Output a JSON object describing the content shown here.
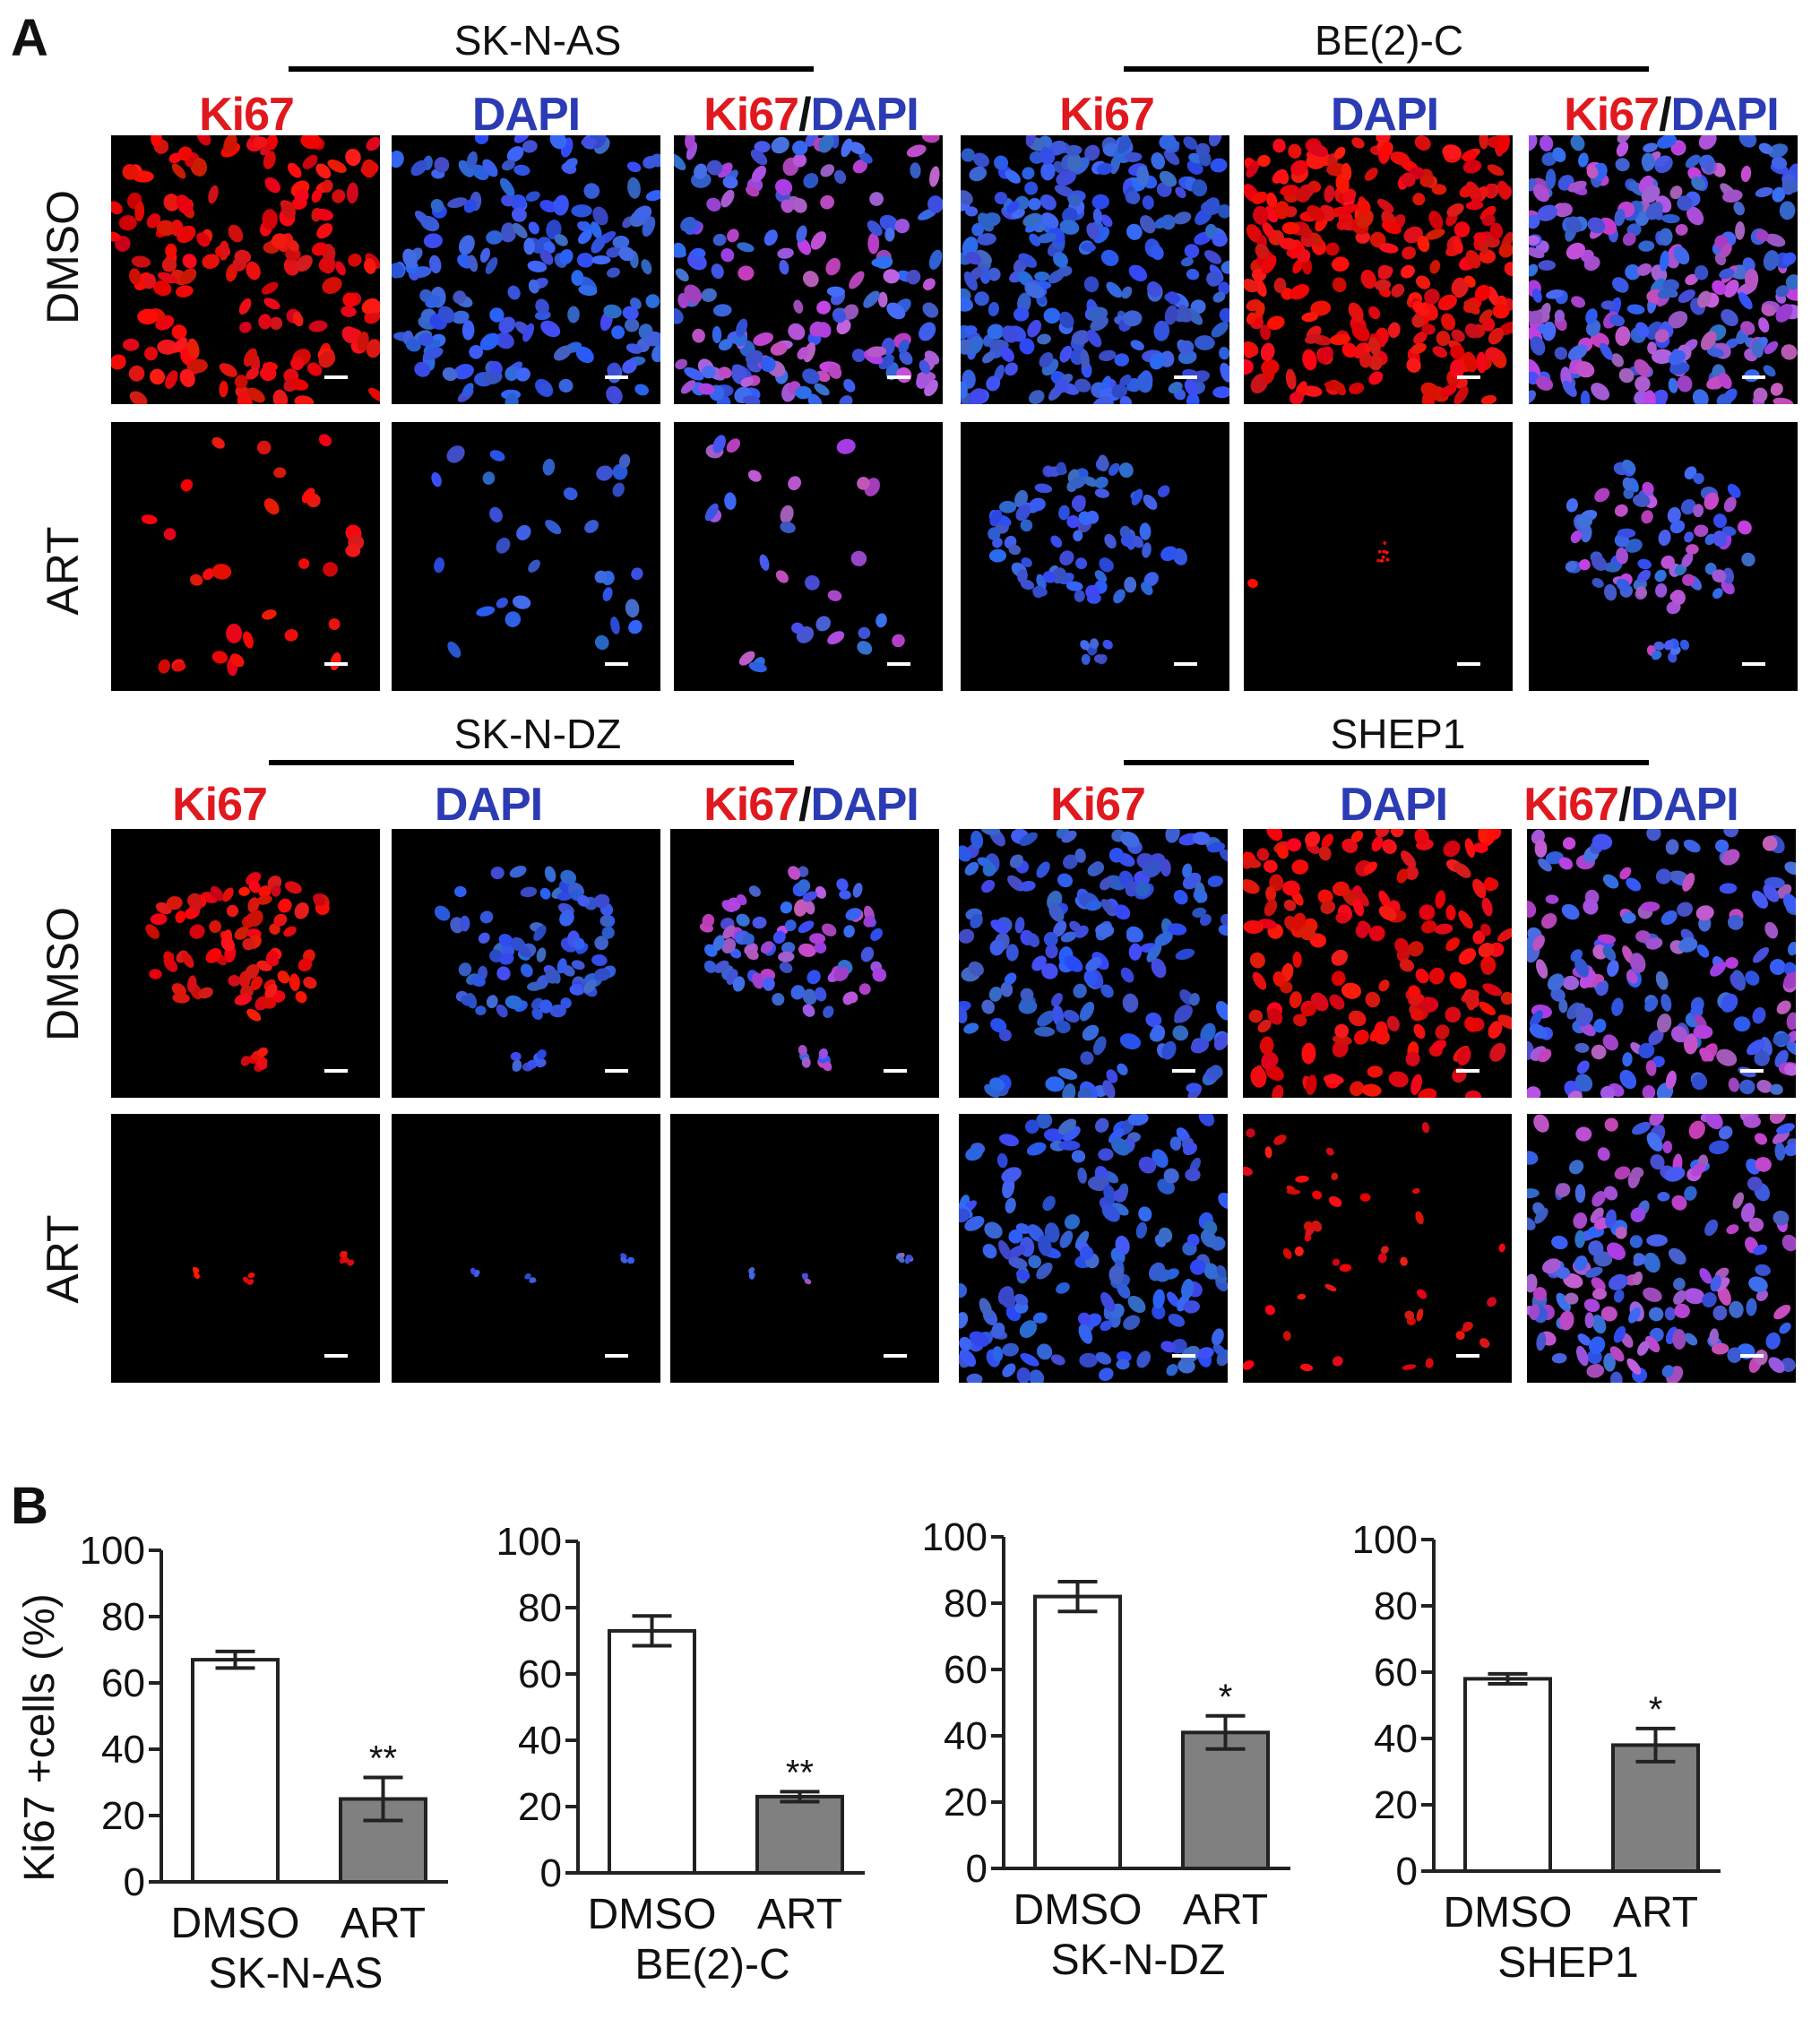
{
  "panel_a": {
    "letter": "A",
    "groups": [
      {
        "cell_line": "SK-N-AS",
        "channels": [
          "Ki67",
          "DAPI",
          "Ki67/DAPI"
        ],
        "rows": [
          "DMSO",
          "ART"
        ]
      },
      {
        "cell_line": "BE(2)-C",
        "channels": [
          "Ki67",
          "DAPI",
          "Ki67/DAPI"
        ],
        "rows": [
          "DMSO",
          "ART"
        ]
      },
      {
        "cell_line": "SK-N-DZ",
        "channels": [
          "Ki67",
          "DAPI",
          "Ki67/DAPI"
        ],
        "rows": [
          "DMSO",
          "ART"
        ]
      },
      {
        "cell_line": "SHEP1",
        "channels": [
          "Ki67",
          "DAPI",
          "Ki67/DAPI"
        ],
        "rows": [
          "DMSO",
          "ART"
        ]
      }
    ],
    "labels": {
      "ki67": "Ki67",
      "dapi": "DAPI",
      "slash": "/",
      "dmso": "DMSO",
      "art": "ART"
    },
    "colors": {
      "ki67": "#e0191f",
      "dapi": "#2b3bb3"
    }
  },
  "panel_b": {
    "letter": "B",
    "ylabel": "Ki67 +cells (%)"
  },
  "chart_data": [
    {
      "type": "bar",
      "categories": [
        "DMSO",
        "ART"
      ],
      "xlabel": "SK-N-AS",
      "ylabel": "Ki67 +cells (%)",
      "ylim": [
        0,
        100
      ],
      "yticks": [
        0,
        20,
        40,
        60,
        80,
        100
      ],
      "values": [
        67,
        25
      ],
      "errors": [
        2.5,
        6.5
      ],
      "significance": [
        "",
        "**"
      ],
      "bar_colors": [
        "#ffffff",
        "#808080"
      ]
    },
    {
      "type": "bar",
      "categories": [
        "DMSO",
        "ART"
      ],
      "xlabel": "BE(2)-C",
      "ylabel": "",
      "ylim": [
        0,
        100
      ],
      "yticks": [
        0,
        20,
        40,
        60,
        80,
        100
      ],
      "values": [
        73,
        23
      ],
      "errors": [
        4.5,
        1.5
      ],
      "significance": [
        "",
        "**"
      ],
      "bar_colors": [
        "#ffffff",
        "#808080"
      ]
    },
    {
      "type": "bar",
      "categories": [
        "DMSO",
        "ART"
      ],
      "xlabel": "SK-N-DZ",
      "ylabel": "",
      "ylim": [
        0,
        100
      ],
      "yticks": [
        0,
        20,
        40,
        60,
        80,
        100
      ],
      "values": [
        82,
        41
      ],
      "errors": [
        4.5,
        5
      ],
      "significance": [
        "",
        "*"
      ],
      "bar_colors": [
        "#ffffff",
        "#808080"
      ]
    },
    {
      "type": "bar",
      "categories": [
        "DMSO",
        "ART"
      ],
      "xlabel": "SHEP1",
      "ylabel": "",
      "ylim": [
        0,
        100
      ],
      "yticks": [
        0,
        20,
        40,
        60,
        80,
        100
      ],
      "values": [
        58,
        38
      ],
      "errors": [
        1.5,
        5
      ],
      "significance": [
        "",
        "*"
      ],
      "bar_colors": [
        "#ffffff",
        "#808080"
      ]
    }
  ]
}
